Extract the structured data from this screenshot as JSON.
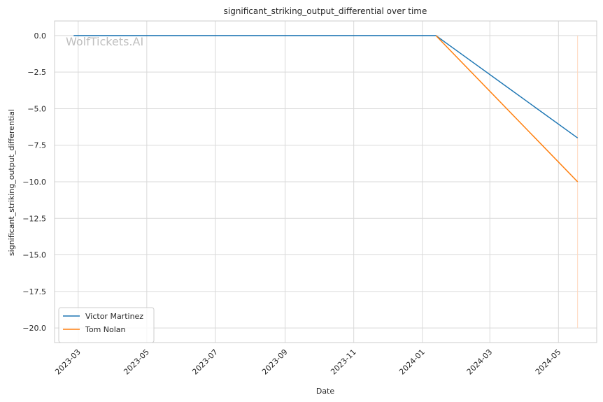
{
  "watermark": "WolfTickets.AI",
  "chart_data": {
    "type": "line",
    "title": "significant_striking_output_differential over time",
    "xlabel": "Date",
    "ylabel": "significant_striking_output_differential",
    "xlim": [
      "2023-02-08",
      "2024-06-04"
    ],
    "ylim": [
      -21,
      1
    ],
    "x_ticks": [
      "2023-03-01",
      "2023-05-01",
      "2023-07-01",
      "2023-09-01",
      "2023-11-01",
      "2024-01-01",
      "2024-03-01",
      "2024-05-01"
    ],
    "x_tick_labels": [
      "2023-03",
      "2023-05",
      "2023-07",
      "2023-09",
      "2023-11",
      "2024-01",
      "2024-03",
      "2024-05"
    ],
    "y_ticks": [
      0,
      -2.5,
      -5,
      -7.5,
      -10,
      -12.5,
      -15,
      -17.5,
      -20
    ],
    "y_tick_labels": [
      "0.0",
      "−2.5",
      "−5.0",
      "−7.5",
      "−10.0",
      "−12.5",
      "−15.0",
      "−17.5",
      "−20.0"
    ],
    "grid": true,
    "legend_position": "lower-left",
    "series": [
      {
        "name": "Victor Martinez",
        "color": "#1f77b4",
        "points": [
          {
            "x": "2023-02-25",
            "y": 0
          },
          {
            "x": "2024-01-13",
            "y": 0
          },
          {
            "x": "2024-05-18",
            "y": -7
          }
        ]
      },
      {
        "name": "Tom Nolan",
        "color": "#ff7f0e",
        "points": [
          {
            "x": "2024-01-13",
            "y": 0
          },
          {
            "x": "2024-05-18",
            "y": -10
          }
        ]
      }
    ],
    "annotations": [
      {
        "type": "vline",
        "x": "2024-05-18",
        "y_from": -20,
        "y_to": 0,
        "color": "#ffd8bd"
      }
    ]
  }
}
